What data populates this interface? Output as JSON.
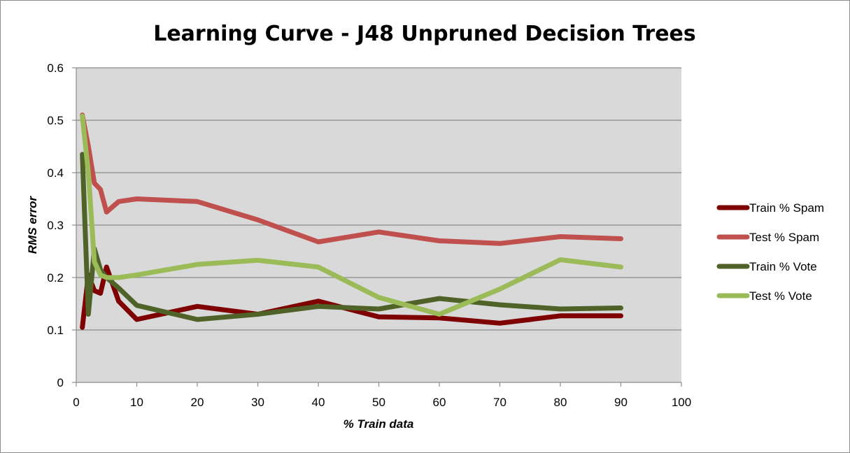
{
  "chart_data": {
    "type": "line",
    "title": "Learning Curve - J48 Unpruned Decision Trees",
    "xlabel": "% Train data",
    "ylabel": "RMS error",
    "xlim": [
      0,
      100
    ],
    "ylim": [
      0,
      0.6
    ],
    "xticks": [
      "0",
      "10",
      "20",
      "30",
      "40",
      "50",
      "60",
      "70",
      "80",
      "90",
      "100"
    ],
    "yticks": [
      "0",
      "0.1",
      "0.2",
      "0.3",
      "0.4",
      "0.5",
      "0.6"
    ],
    "grid": true,
    "legend_position": "right",
    "plot_background": "#d9d9d9",
    "series": [
      {
        "name": "Train % Spam",
        "color": "#7f0000",
        "x": [
          1,
          2,
          3,
          4,
          5,
          7,
          10,
          20,
          30,
          40,
          50,
          60,
          70,
          80,
          90
        ],
        "y": [
          0.105,
          0.205,
          0.175,
          0.17,
          0.22,
          0.155,
          0.12,
          0.145,
          0.13,
          0.155,
          0.125,
          0.123,
          0.113,
          0.127,
          0.127
        ]
      },
      {
        "name": "Test % Spam",
        "color": "#c0504d",
        "x": [
          1,
          2,
          3,
          4,
          5,
          7,
          10,
          20,
          30,
          40,
          50,
          60,
          70,
          80,
          90
        ],
        "y": [
          0.51,
          0.45,
          0.38,
          0.368,
          0.325,
          0.345,
          0.35,
          0.345,
          0.31,
          0.268,
          0.287,
          0.27,
          0.265,
          0.278,
          0.274
        ]
      },
      {
        "name": "Train % Vote",
        "color": "#4f6228",
        "x": [
          1,
          2,
          3,
          4,
          5,
          7,
          10,
          20,
          30,
          40,
          50,
          60,
          70,
          80,
          90
        ],
        "y": [
          0.435,
          0.13,
          0.255,
          0.215,
          0.2,
          0.18,
          0.147,
          0.12,
          0.13,
          0.145,
          0.14,
          0.16,
          0.148,
          0.14,
          0.142
        ]
      },
      {
        "name": "Test % Vote",
        "color": "#9bbb59",
        "x": [
          1,
          2,
          3,
          4,
          5,
          7,
          10,
          20,
          30,
          40,
          50,
          60,
          70,
          80,
          90
        ],
        "y": [
          0.508,
          0.4,
          0.23,
          0.205,
          0.2,
          0.2,
          0.205,
          0.225,
          0.233,
          0.22,
          0.162,
          0.13,
          0.178,
          0.234,
          0.22
        ]
      }
    ]
  }
}
